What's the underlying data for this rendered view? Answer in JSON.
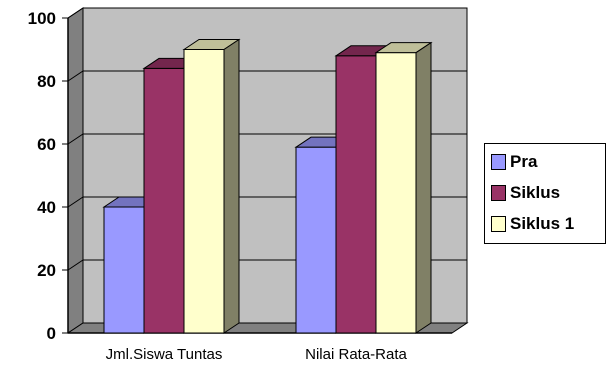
{
  "chart_data": {
    "type": "bar",
    "categories": [
      "Jml.Siswa Tuntas",
      "Nilai Rata-Rata"
    ],
    "series": [
      {
        "name": "Pra",
        "values": [
          40,
          59
        ],
        "color": "#9999ff"
      },
      {
        "name": "Siklus",
        "values": [
          84,
          88
        ],
        "color": "#993366"
      },
      {
        "name": "Siklus 1",
        "values": [
          90,
          89
        ],
        "color": "#ffffcc"
      }
    ],
    "yticks": [
      "0",
      "20",
      "40",
      "60",
      "80",
      "100"
    ],
    "ylim": [
      0,
      100
    ],
    "grid": true,
    "style": "3d",
    "legend_position": "right",
    "colors": {
      "plot_back": "#c0c0c0",
      "side_wall": "#808080",
      "floor": "#808080"
    }
  }
}
